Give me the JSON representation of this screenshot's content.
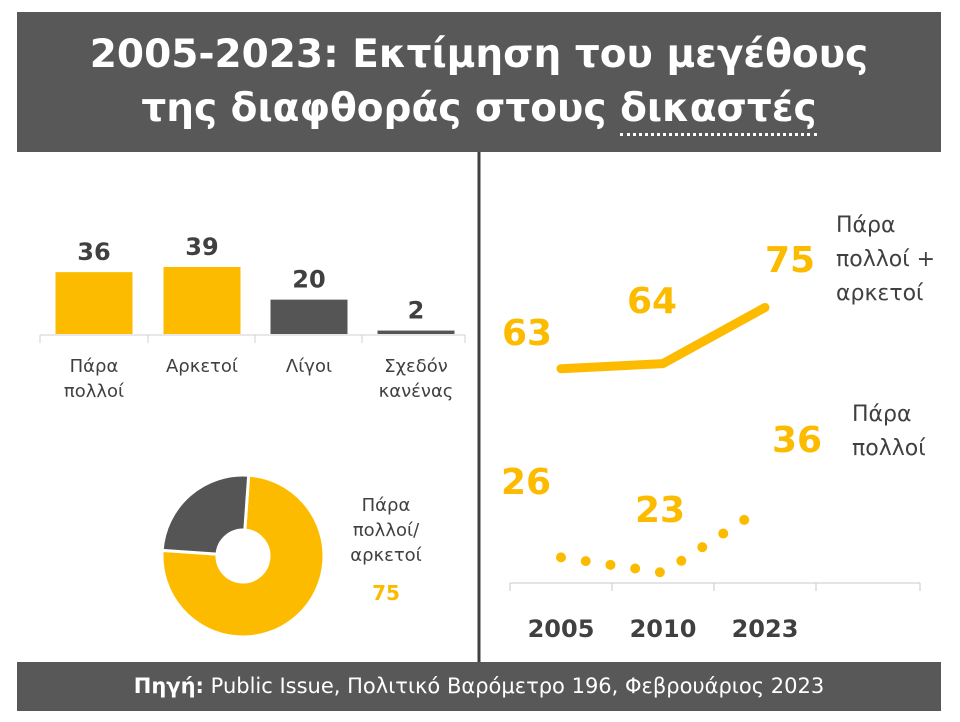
{
  "header": {
    "title_line1": "2005-2023: Εκτίμηση του μεγέθους",
    "title_line2_prefix": "της διαφθοράς στους ",
    "title_line2_underlined": "δικαστές"
  },
  "footer": {
    "source_label": "Πηγή:",
    "source_text": " Public Issue, Πολιτικό Βαρόμετρο 196, Φεβρουάριος 2023"
  },
  "colors": {
    "yellow": "#FDBB00",
    "dark": "#555555",
    "panel": "#585858"
  },
  "chart_data": [
    {
      "type": "bar",
      "categories": [
        [
          "Πάρα",
          "πολλοί"
        ],
        [
          "Αρκετοί"
        ],
        [
          "Λίγοι"
        ],
        [
          "Σχεδόν",
          "κανένας"
        ]
      ],
      "values": [
        36,
        39,
        20,
        2
      ],
      "value_labels": [
        "36",
        "39",
        "20",
        "2"
      ],
      "colors": [
        "#FDBB00",
        "#FDBB00",
        "#555555",
        "#555555"
      ],
      "ylim": [
        0,
        40
      ]
    },
    {
      "type": "pie",
      "donut": true,
      "slices": [
        {
          "value": 75,
          "color": "#FDBB00"
        },
        {
          "value": 25,
          "color": "#555555"
        }
      ],
      "label_lines": [
        "Πάρα",
        "πολλοί/",
        "αρκετοί"
      ],
      "value_label": "75"
    },
    {
      "type": "line",
      "x": [
        "2005",
        "2010",
        "2023"
      ],
      "ylim": [
        20,
        80
      ],
      "series": [
        {
          "name": "Πάρα πολλοί + αρκετοί",
          "name_lines": [
            "Πάρα",
            "πολλοί +",
            "αρκετοί"
          ],
          "values": [
            63,
            64,
            75
          ],
          "labels": [
            "63",
            "64",
            "75"
          ],
          "style": "solid",
          "color": "#FDBB00"
        },
        {
          "name": "Πάρα πολλοί",
          "name_lines": [
            "Πάρα",
            "πολλοί"
          ],
          "values": [
            26,
            23,
            36
          ],
          "labels": [
            "26",
            "23",
            "36"
          ],
          "style": "dotted",
          "color": "#FDBB00"
        }
      ]
    }
  ]
}
